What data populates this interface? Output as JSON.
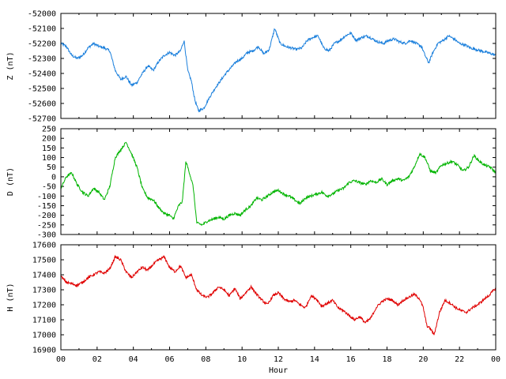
{
  "chart_data": [
    {
      "type": "line",
      "ylabel": "Z (nT)",
      "ylim": [
        -52700,
        -52000
      ],
      "yticks": [
        -52000,
        -52100,
        -52200,
        -52300,
        -52400,
        -52500,
        -52600,
        -52700
      ],
      "color": "#1a7fdc",
      "xlim": [
        0,
        24
      ],
      "series": [
        {
          "x": [
            0,
            0.3,
            0.6,
            0.9,
            1.2,
            1.5,
            1.8,
            2.1,
            2.4,
            2.7,
            3.0,
            3.3,
            3.6,
            3.9,
            4.2,
            4.5,
            4.8,
            5.1,
            5.4,
            5.7,
            6.0,
            6.3,
            6.6,
            6.8,
            7.0,
            7.2,
            7.4,
            7.6,
            7.9,
            8.2,
            8.5,
            8.8,
            9.1,
            9.4,
            9.7,
            10.0,
            10.3,
            10.6,
            10.9,
            11.2,
            11.5,
            11.8,
            12.1,
            12.4,
            12.7,
            13.0,
            13.3,
            13.6,
            13.9,
            14.2,
            14.5,
            14.8,
            15.1,
            15.4,
            15.7,
            16.0,
            16.3,
            16.6,
            16.9,
            17.2,
            17.5,
            17.8,
            18.1,
            18.4,
            18.7,
            19.0,
            19.3,
            19.6,
            19.9,
            20.1,
            20.3,
            20.5,
            20.8,
            21.1,
            21.4,
            21.7,
            22.0,
            22.3,
            22.6,
            22.9,
            23.2,
            23.5,
            23.8,
            24.0
          ],
          "y": [
            -52200,
            -52220,
            -52280,
            -52300,
            -52280,
            -52230,
            -52200,
            -52220,
            -52230,
            -52250,
            -52380,
            -52440,
            -52420,
            -52480,
            -52460,
            -52400,
            -52350,
            -52380,
            -52320,
            -52280,
            -52260,
            -52280,
            -52250,
            -52180,
            -52380,
            -52450,
            -52580,
            -52650,
            -52630,
            -52560,
            -52500,
            -52450,
            -52400,
            -52360,
            -52320,
            -52300,
            -52260,
            -52250,
            -52220,
            -52270,
            -52240,
            -52100,
            -52200,
            -52220,
            -52230,
            -52240,
            -52230,
            -52180,
            -52160,
            -52150,
            -52230,
            -52250,
            -52200,
            -52180,
            -52150,
            -52130,
            -52180,
            -52160,
            -52150,
            -52170,
            -52190,
            -52200,
            -52180,
            -52170,
            -52190,
            -52200,
            -52180,
            -52200,
            -52220,
            -52280,
            -52330,
            -52270,
            -52200,
            -52180,
            -52150,
            -52170,
            -52200,
            -52210,
            -52230,
            -52240,
            -52250,
            -52260,
            -52270,
            -52280
          ]
        }
      ]
    },
    {
      "type": "line",
      "ylabel": "D (nT)",
      "ylim": [
        -300,
        250
      ],
      "yticks": [
        250,
        200,
        150,
        100,
        50,
        0,
        -50,
        -100,
        -150,
        -200,
        -250,
        -300
      ],
      "color": "#00b400",
      "xlim": [
        0,
        24
      ],
      "series": [
        {
          "x": [
            0,
            0.3,
            0.6,
            0.9,
            1.2,
            1.5,
            1.8,
            2.1,
            2.4,
            2.7,
            3.0,
            3.3,
            3.6,
            3.9,
            4.2,
            4.5,
            4.8,
            5.1,
            5.4,
            5.7,
            6.0,
            6.2,
            6.5,
            6.7,
            6.9,
            7.1,
            7.3,
            7.5,
            7.8,
            8.1,
            8.4,
            8.7,
            9.0,
            9.3,
            9.6,
            9.9,
            10.2,
            10.5,
            10.8,
            11.1,
            11.4,
            11.7,
            12.0,
            12.3,
            12.6,
            12.9,
            13.2,
            13.5,
            13.8,
            14.1,
            14.4,
            14.7,
            15.0,
            15.3,
            15.6,
            15.9,
            16.2,
            16.5,
            16.8,
            17.1,
            17.4,
            17.7,
            18.0,
            18.3,
            18.6,
            18.9,
            19.2,
            19.5,
            19.8,
            20.1,
            20.4,
            20.7,
            21.0,
            21.3,
            21.6,
            21.9,
            22.2,
            22.5,
            22.8,
            23.1,
            23.4,
            23.7,
            24.0
          ],
          "y": [
            -60,
            0,
            20,
            -40,
            -80,
            -100,
            -60,
            -80,
            -120,
            -50,
            100,
            140,
            180,
            120,
            50,
            -60,
            -110,
            -120,
            -160,
            -190,
            -200,
            -220,
            -150,
            -130,
            80,
            20,
            -50,
            -240,
            -250,
            -230,
            -220,
            -210,
            -220,
            -200,
            -190,
            -200,
            -170,
            -150,
            -110,
            -120,
            -100,
            -80,
            -70,
            -90,
            -100,
            -120,
            -140,
            -110,
            -100,
            -90,
            -80,
            -100,
            -90,
            -70,
            -60,
            -30,
            -20,
            -30,
            -40,
            -20,
            -30,
            -10,
            -40,
            -20,
            -10,
            -20,
            0,
            50,
            120,
            100,
            30,
            20,
            60,
            70,
            80,
            60,
            30,
            50,
            110,
            80,
            60,
            50,
            20
          ]
        }
      ]
    },
    {
      "type": "line",
      "ylabel": "H (nT)",
      "xlabel": "Hour",
      "ylim": [
        16900,
        17600
      ],
      "yticks": [
        17600,
        17500,
        17400,
        17300,
        17200,
        17100,
        17000,
        16900
      ],
      "color": "#e00000",
      "xlim": [
        0,
        24
      ],
      "xticks": [
        "00",
        "02",
        "04",
        "06",
        "08",
        "10",
        "12",
        "14",
        "16",
        "18",
        "20",
        "22",
        "00"
      ],
      "series": [
        {
          "x": [
            0,
            0.3,
            0.6,
            0.9,
            1.2,
            1.5,
            1.8,
            2.1,
            2.4,
            2.7,
            3.0,
            3.3,
            3.6,
            3.9,
            4.2,
            4.5,
            4.8,
            5.1,
            5.4,
            5.7,
            6.0,
            6.3,
            6.6,
            6.9,
            7.2,
            7.5,
            7.8,
            8.1,
            8.4,
            8.7,
            9.0,
            9.3,
            9.6,
            9.9,
            10.2,
            10.5,
            10.8,
            11.1,
            11.4,
            11.7,
            12.0,
            12.3,
            12.6,
            12.9,
            13.2,
            13.5,
            13.8,
            14.1,
            14.4,
            14.7,
            15.0,
            15.3,
            15.6,
            15.9,
            16.2,
            16.5,
            16.8,
            17.1,
            17.4,
            17.7,
            18.0,
            18.3,
            18.6,
            18.9,
            19.2,
            19.5,
            19.8,
            20.0,
            20.2,
            20.4,
            20.6,
            20.9,
            21.2,
            21.5,
            21.8,
            22.1,
            22.4,
            22.7,
            23.0,
            23.3,
            23.6,
            24.0
          ],
          "y": [
            17390,
            17350,
            17340,
            17330,
            17350,
            17380,
            17400,
            17420,
            17410,
            17440,
            17520,
            17500,
            17420,
            17380,
            17420,
            17450,
            17430,
            17470,
            17500,
            17520,
            17450,
            17420,
            17460,
            17380,
            17400,
            17300,
            17260,
            17250,
            17280,
            17320,
            17300,
            17260,
            17310,
            17240,
            17280,
            17320,
            17270,
            17230,
            17200,
            17260,
            17280,
            17240,
            17220,
            17230,
            17200,
            17180,
            17260,
            17240,
            17190,
            17210,
            17230,
            17180,
            17160,
            17130,
            17100,
            17120,
            17080,
            17110,
            17180,
            17220,
            17240,
            17230,
            17200,
            17230,
            17250,
            17270,
            17240,
            17180,
            17060,
            17040,
            17000,
            17150,
            17230,
            17210,
            17180,
            17160,
            17150,
            17180,
            17200,
            17230,
            17260,
            17310
          ]
        }
      ]
    }
  ]
}
